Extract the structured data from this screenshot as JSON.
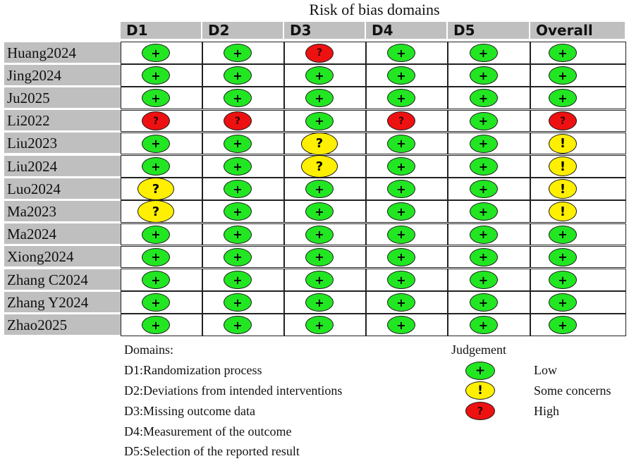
{
  "chart_data": {
    "type": "table",
    "title": "Risk of bias domains",
    "columns": [
      "D1",
      "D2",
      "D3",
      "D4",
      "D5",
      "Overall"
    ],
    "rows": [
      {
        "study": "Huang2024",
        "judgements": [
          "low",
          "low",
          "high",
          "low",
          "low",
          "low"
        ]
      },
      {
        "study": "Jing2024",
        "judgements": [
          "low",
          "low",
          "low",
          "low",
          "low",
          "low"
        ]
      },
      {
        "study": "Ju2025",
        "judgements": [
          "low",
          "low",
          "low",
          "low",
          "low",
          "low"
        ]
      },
      {
        "study": "Li2022",
        "judgements": [
          "high",
          "high",
          "low",
          "high",
          "low",
          "high"
        ]
      },
      {
        "study": "Liu2023",
        "judgements": [
          "low",
          "low",
          "some",
          "low",
          "low",
          "some"
        ]
      },
      {
        "study": "Liu2024",
        "judgements": [
          "low",
          "low",
          "some",
          "low",
          "low",
          "some"
        ]
      },
      {
        "study": "Luo2024",
        "judgements": [
          "some",
          "low",
          "low",
          "low",
          "low",
          "some"
        ]
      },
      {
        "study": "Ma2023",
        "judgements": [
          "some",
          "low",
          "low",
          "low",
          "low",
          "some"
        ]
      },
      {
        "study": "Ma2024",
        "judgements": [
          "low",
          "low",
          "low",
          "low",
          "low",
          "low"
        ]
      },
      {
        "study": "Xiong2024",
        "judgements": [
          "low",
          "low",
          "low",
          "low",
          "low",
          "low"
        ]
      },
      {
        "study": "Zhang C2024",
        "judgements": [
          "low",
          "low",
          "low",
          "low",
          "low",
          "low"
        ]
      },
      {
        "study": "Zhang Y2024",
        "judgements": [
          "low",
          "low",
          "low",
          "low",
          "low",
          "low"
        ]
      },
      {
        "study": "Zhao2025",
        "judgements": [
          "low",
          "low",
          "low",
          "low",
          "low",
          "low"
        ]
      }
    ],
    "symbols": {
      "low": "+",
      "some": "!",
      "high": "?",
      "some_in_domain_cells": "?"
    },
    "colors": {
      "low": "#22e622",
      "some": "#ffef00",
      "high": "#ee1111",
      "header_bg": "#bfbfbf"
    },
    "legend": {
      "domains_title": "Domains:",
      "domains": [
        "D1:Randomization process",
        "D2:Deviations from intended interventions",
        "D3:Missing outcome data",
        "D4:Measurement of the outcome",
        "D5:Selection of the reported result"
      ],
      "judgement_title": "Judgement",
      "judgements": [
        {
          "key": "low",
          "symbol": "+",
          "label": "Low"
        },
        {
          "key": "some",
          "symbol": "!",
          "label": "Some concerns"
        },
        {
          "key": "high",
          "symbol": "?",
          "label": "High"
        }
      ]
    }
  }
}
